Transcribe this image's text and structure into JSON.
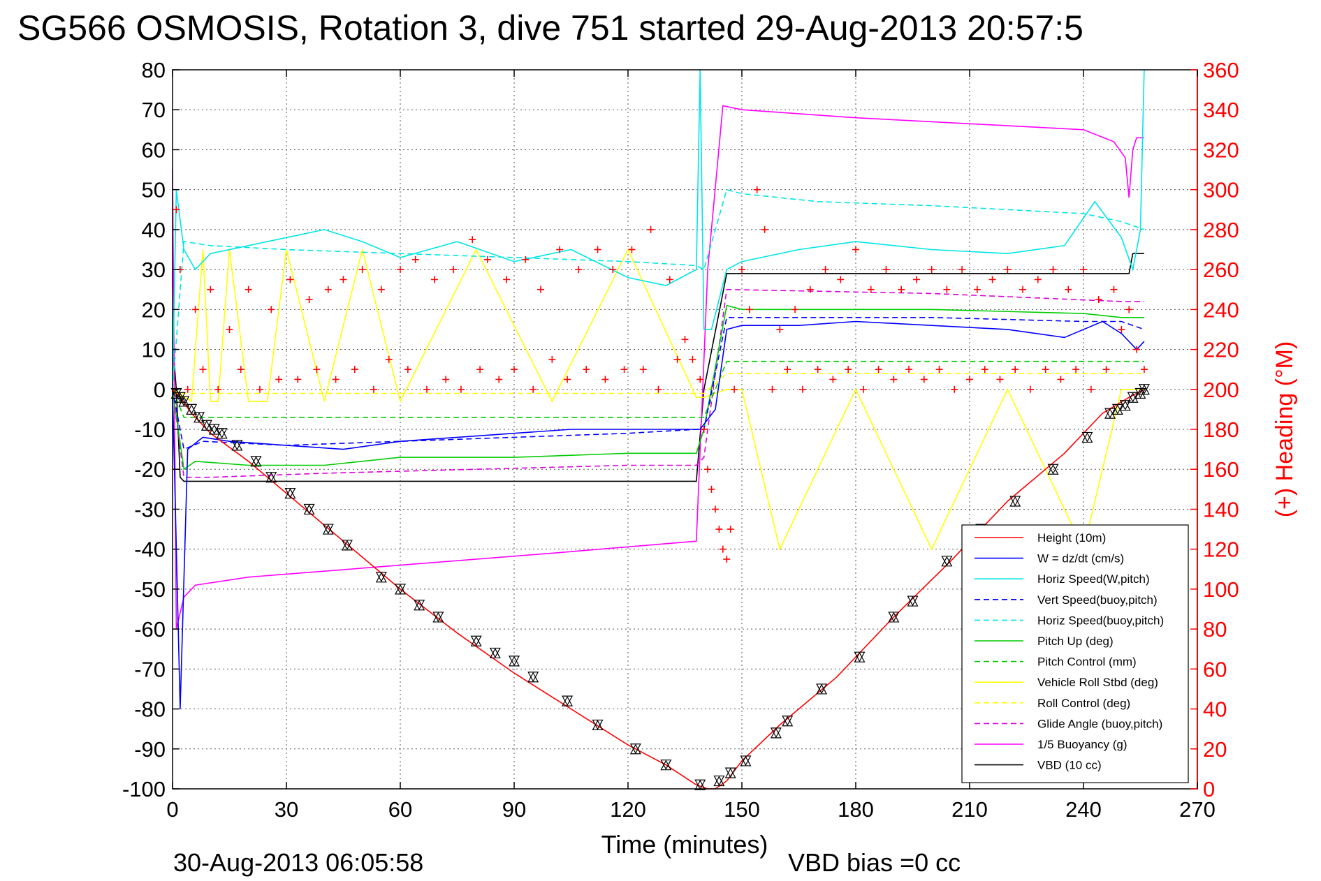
{
  "chart_data": {
    "type": "line",
    "title": "SG566 OSMOSIS, Rotation 3, dive 751 started 29-Aug-2013 20:57:5",
    "xlabel": "Time (minutes)",
    "ylabel": "",
    "ylabel_right": "(+) Heading (°M)",
    "xlim": [
      0,
      270
    ],
    "ylim": [
      -100,
      80
    ],
    "ylim_right": [
      0,
      360
    ],
    "x_ticks": [
      0,
      30,
      60,
      90,
      120,
      150,
      180,
      210,
      240,
      270
    ],
    "y_ticks": [
      80,
      70,
      60,
      50,
      40,
      30,
      20,
      10,
      0,
      -10,
      -20,
      -30,
      -40,
      -50,
      -60,
      -70,
      -80,
      -90,
      -100
    ],
    "y_ticks_right": [
      360,
      340,
      320,
      300,
      280,
      260,
      240,
      220,
      200,
      180,
      160,
      140,
      120,
      100,
      80,
      60,
      40,
      20,
      0
    ],
    "grid": true,
    "legend_position": "bottom-right",
    "footer_left": "30-Aug-2013 06:05:58",
    "footer_right": "VBD bias =0 cc",
    "series": [
      {
        "name": "Height (10m)",
        "color": "#ff0000",
        "style": "solid",
        "x": [
          0,
          2,
          5,
          10,
          20,
          30,
          45,
          60,
          75,
          90,
          105,
          120,
          130,
          138,
          141,
          143,
          146,
          150,
          160,
          175,
          190,
          205,
          220,
          235,
          245,
          252,
          256
        ],
        "y": [
          0,
          -2,
          -6,
          -11,
          -18,
          -26,
          -38,
          -50,
          -61,
          -71,
          -80,
          -89,
          -94,
          -99,
          -100,
          -100,
          -98,
          -93,
          -84,
          -72,
          -57,
          -43,
          -28,
          -16,
          -6,
          -2,
          0
        ]
      },
      {
        "name": "W = dz/dt (cm/s)",
        "color": "#0000ff",
        "style": "solid",
        "x": [
          0,
          2,
          4,
          8,
          15,
          30,
          45,
          60,
          75,
          90,
          105,
          120,
          135,
          139,
          143,
          146,
          150,
          165,
          180,
          200,
          220,
          235,
          245,
          250,
          254,
          256
        ],
        "y": [
          0,
          -80,
          -15,
          -12,
          -13,
          -14,
          -15,
          -13,
          -12,
          -11,
          -10,
          -10,
          -10,
          -10,
          -5,
          15,
          16,
          16,
          17,
          16,
          15,
          13,
          17,
          14,
          10,
          12
        ]
      },
      {
        "name": "Horiz Speed(W,pitch)",
        "color": "#00e5e5",
        "style": "solid",
        "x": [
          0,
          1,
          3,
          6,
          10,
          20,
          30,
          40,
          50,
          60,
          75,
          90,
          105,
          120,
          130,
          138,
          139,
          140,
          142,
          146,
          150,
          165,
          180,
          200,
          220,
          235,
          243,
          250,
          253,
          255,
          256
        ],
        "y": [
          0,
          50,
          35,
          30,
          34,
          36,
          38,
          40,
          37,
          33,
          37,
          32,
          35,
          28,
          26,
          30,
          80,
          15,
          15,
          30,
          32,
          35,
          37,
          35,
          34,
          36,
          47,
          38,
          30,
          40,
          80
        ]
      },
      {
        "name": "Vert Speed(buoy,pitch)",
        "color": "#0000ff",
        "style": "dashed",
        "x": [
          0,
          3,
          8,
          30,
          60,
          90,
          120,
          138,
          140,
          146,
          160,
          200,
          240,
          250,
          256
        ],
        "y": [
          0,
          -15,
          -13,
          -14,
          -13,
          -12,
          -11,
          -10,
          -10,
          18,
          18,
          18,
          17,
          17,
          15
        ]
      },
      {
        "name": "Horiz Speed(buoy,pitch)",
        "color": "#00e5e5",
        "style": "dashed",
        "x": [
          0,
          3,
          10,
          30,
          60,
          90,
          120,
          138,
          140,
          146,
          150,
          170,
          200,
          240,
          250,
          256
        ],
        "y": [
          0,
          37,
          36,
          35,
          34,
          33,
          32,
          31,
          30,
          50,
          49,
          47,
          46,
          44,
          42,
          40
        ]
      },
      {
        "name": "Pitch Up (deg)",
        "color": "#00cc00",
        "style": "solid",
        "x": [
          0,
          3,
          6,
          20,
          40,
          60,
          90,
          120,
          138,
          140,
          146,
          150,
          200,
          240,
          250,
          256
        ],
        "y": [
          0,
          -20,
          -18,
          -19,
          -19,
          -17,
          -17,
          -16,
          -16,
          -10,
          21,
          20,
          20,
          19,
          18,
          18
        ]
      },
      {
        "name": "Pitch Control (mm)",
        "color": "#00cc00",
        "style": "dashed",
        "x": [
          0,
          3,
          138,
          140,
          146,
          256
        ],
        "y": [
          0,
          -7,
          -7,
          -7,
          7,
          7
        ]
      },
      {
        "name": "Vehicle Roll Stbd (deg)",
        "color": "#ffff00",
        "style": "solid",
        "x": [
          0,
          5,
          8,
          10,
          12,
          15,
          20,
          25,
          30,
          40,
          50,
          60,
          80,
          100,
          120,
          138,
          140,
          146,
          150,
          160,
          180,
          200,
          220,
          240,
          250,
          256
        ],
        "y": [
          0,
          -3,
          35,
          -3,
          -3,
          35,
          -3,
          -3,
          35,
          -3,
          35,
          -3,
          35,
          -3,
          35,
          -2,
          -2,
          0,
          0,
          -40,
          0,
          -40,
          0,
          -40,
          0,
          0
        ]
      },
      {
        "name": "Roll Control (deg)",
        "color": "#ffff00",
        "style": "dashed",
        "x": [
          0,
          140,
          146,
          256
        ],
        "y": [
          -1,
          -1,
          4,
          4
        ]
      },
      {
        "name": "Glide Angle (buoy,pitch)",
        "color": "#dd00dd",
        "style": "dashed",
        "x": [
          0,
          3,
          10,
          40,
          80,
          120,
          138,
          140,
          146,
          200,
          250,
          256
        ],
        "y": [
          0,
          -22,
          -22,
          -21,
          -20,
          -19,
          -19,
          -17,
          25,
          24,
          22,
          22
        ]
      },
      {
        "name": "1/5 Buoyancy (g)",
        "color": "#ff00ff",
        "style": "solid",
        "x": [
          0,
          1,
          3,
          6,
          20,
          60,
          100,
          138,
          141,
          145,
          150,
          180,
          220,
          240,
          248,
          251,
          252,
          253,
          254,
          256
        ],
        "y": [
          55,
          -60,
          -52,
          -49,
          -47,
          -44,
          -41,
          -38,
          30,
          71,
          70,
          68,
          66,
          65,
          62,
          58,
          48,
          60,
          63,
          63
        ]
      },
      {
        "name": "VBD (10 cc)",
        "color": "#000000",
        "style": "solid",
        "x": [
          0,
          1,
          2,
          3,
          138,
          140,
          146,
          250,
          252,
          253,
          256
        ],
        "y": [
          12,
          0,
          -22,
          -23,
          -23,
          0,
          29,
          29,
          29,
          34,
          34
        ]
      }
    ],
    "heading_marks_color": "#ff0000",
    "heading_marks_description": "(+) Heading (°M) plotted as red plus markers against right axis",
    "heading_points": {
      "x": [
        1,
        2,
        4,
        6,
        8,
        10,
        12,
        15,
        18,
        20,
        23,
        26,
        28,
        31,
        33,
        36,
        38,
        41,
        43,
        45,
        48,
        50,
        53,
        55,
        57,
        60,
        62,
        64,
        67,
        69,
        72,
        74,
        76,
        79,
        81,
        83,
        86,
        88,
        90,
        93,
        95,
        97,
        100,
        102,
        104,
        107,
        109,
        112,
        114,
        116,
        119,
        121,
        124,
        126,
        128,
        131,
        133,
        135,
        137,
        139,
        140,
        141,
        142,
        143,
        144,
        145,
        146,
        147,
        148,
        150,
        152,
        154,
        156,
        158,
        160,
        162,
        164,
        166,
        168,
        170,
        172,
        174,
        176,
        178,
        180,
        182,
        184,
        186,
        188,
        190,
        192,
        194,
        196,
        198,
        200,
        202,
        204,
        206,
        208,
        210,
        212,
        214,
        216,
        218,
        220,
        222,
        224,
        226,
        228,
        230,
        232,
        234,
        236,
        238,
        240,
        242,
        244,
        246,
        248,
        250,
        252,
        254,
        256
      ],
      "y": [
        290,
        260,
        200,
        240,
        210,
        250,
        200,
        230,
        210,
        250,
        200,
        240,
        205,
        255,
        205,
        245,
        210,
        250,
        205,
        255,
        210,
        260,
        200,
        250,
        215,
        260,
        210,
        265,
        200,
        255,
        205,
        260,
        200,
        275,
        210,
        265,
        205,
        255,
        210,
        265,
        200,
        250,
        215,
        270,
        205,
        260,
        210,
        270,
        205,
        260,
        210,
        270,
        210,
        280,
        200,
        255,
        215,
        225,
        215,
        205,
        180,
        160,
        150,
        140,
        130,
        120,
        115,
        130,
        200,
        260,
        240,
        300,
        280,
        200,
        230,
        210,
        240,
        200,
        250,
        210,
        260,
        205,
        255,
        210,
        270,
        200,
        250,
        210,
        260,
        205,
        250,
        210,
        255,
        205,
        260,
        210,
        250,
        200,
        260,
        205,
        250,
        210,
        255,
        205,
        260,
        210,
        250,
        200,
        255,
        210,
        260,
        205,
        250,
        210,
        260,
        200,
        245,
        210,
        250,
        230,
        240,
        220,
        210
      ]
    },
    "marker_points": {
      "color": "#000000",
      "x": [
        1,
        2,
        3,
        5,
        7,
        9,
        11,
        13,
        17,
        22,
        26,
        31,
        36,
        41,
        46,
        55,
        60,
        65,
        70,
        80,
        85,
        90,
        95,
        104,
        112,
        122,
        130,
        139,
        144,
        147,
        151,
        159,
        162,
        171,
        181,
        190,
        195,
        204,
        213,
        222,
        232,
        241,
        247,
        249,
        251,
        253,
        255,
        256
      ],
      "y": [
        -1,
        -2,
        -3,
        -5,
        -7,
        -9,
        -10,
        -11,
        -14,
        -18,
        -22,
        -26,
        -30,
        -35,
        -39,
        -47,
        -50,
        -54,
        -57,
        -63,
        -66,
        -68,
        -72,
        -78,
        -84,
        -90,
        -94,
        -99,
        -98,
        -96,
        -93,
        -86,
        -83,
        -75,
        -67,
        -57,
        -53,
        -43,
        -35,
        -28,
        -20,
        -12,
        -6,
        -5,
        -4,
        -2,
        -1,
        0
      ]
    }
  }
}
